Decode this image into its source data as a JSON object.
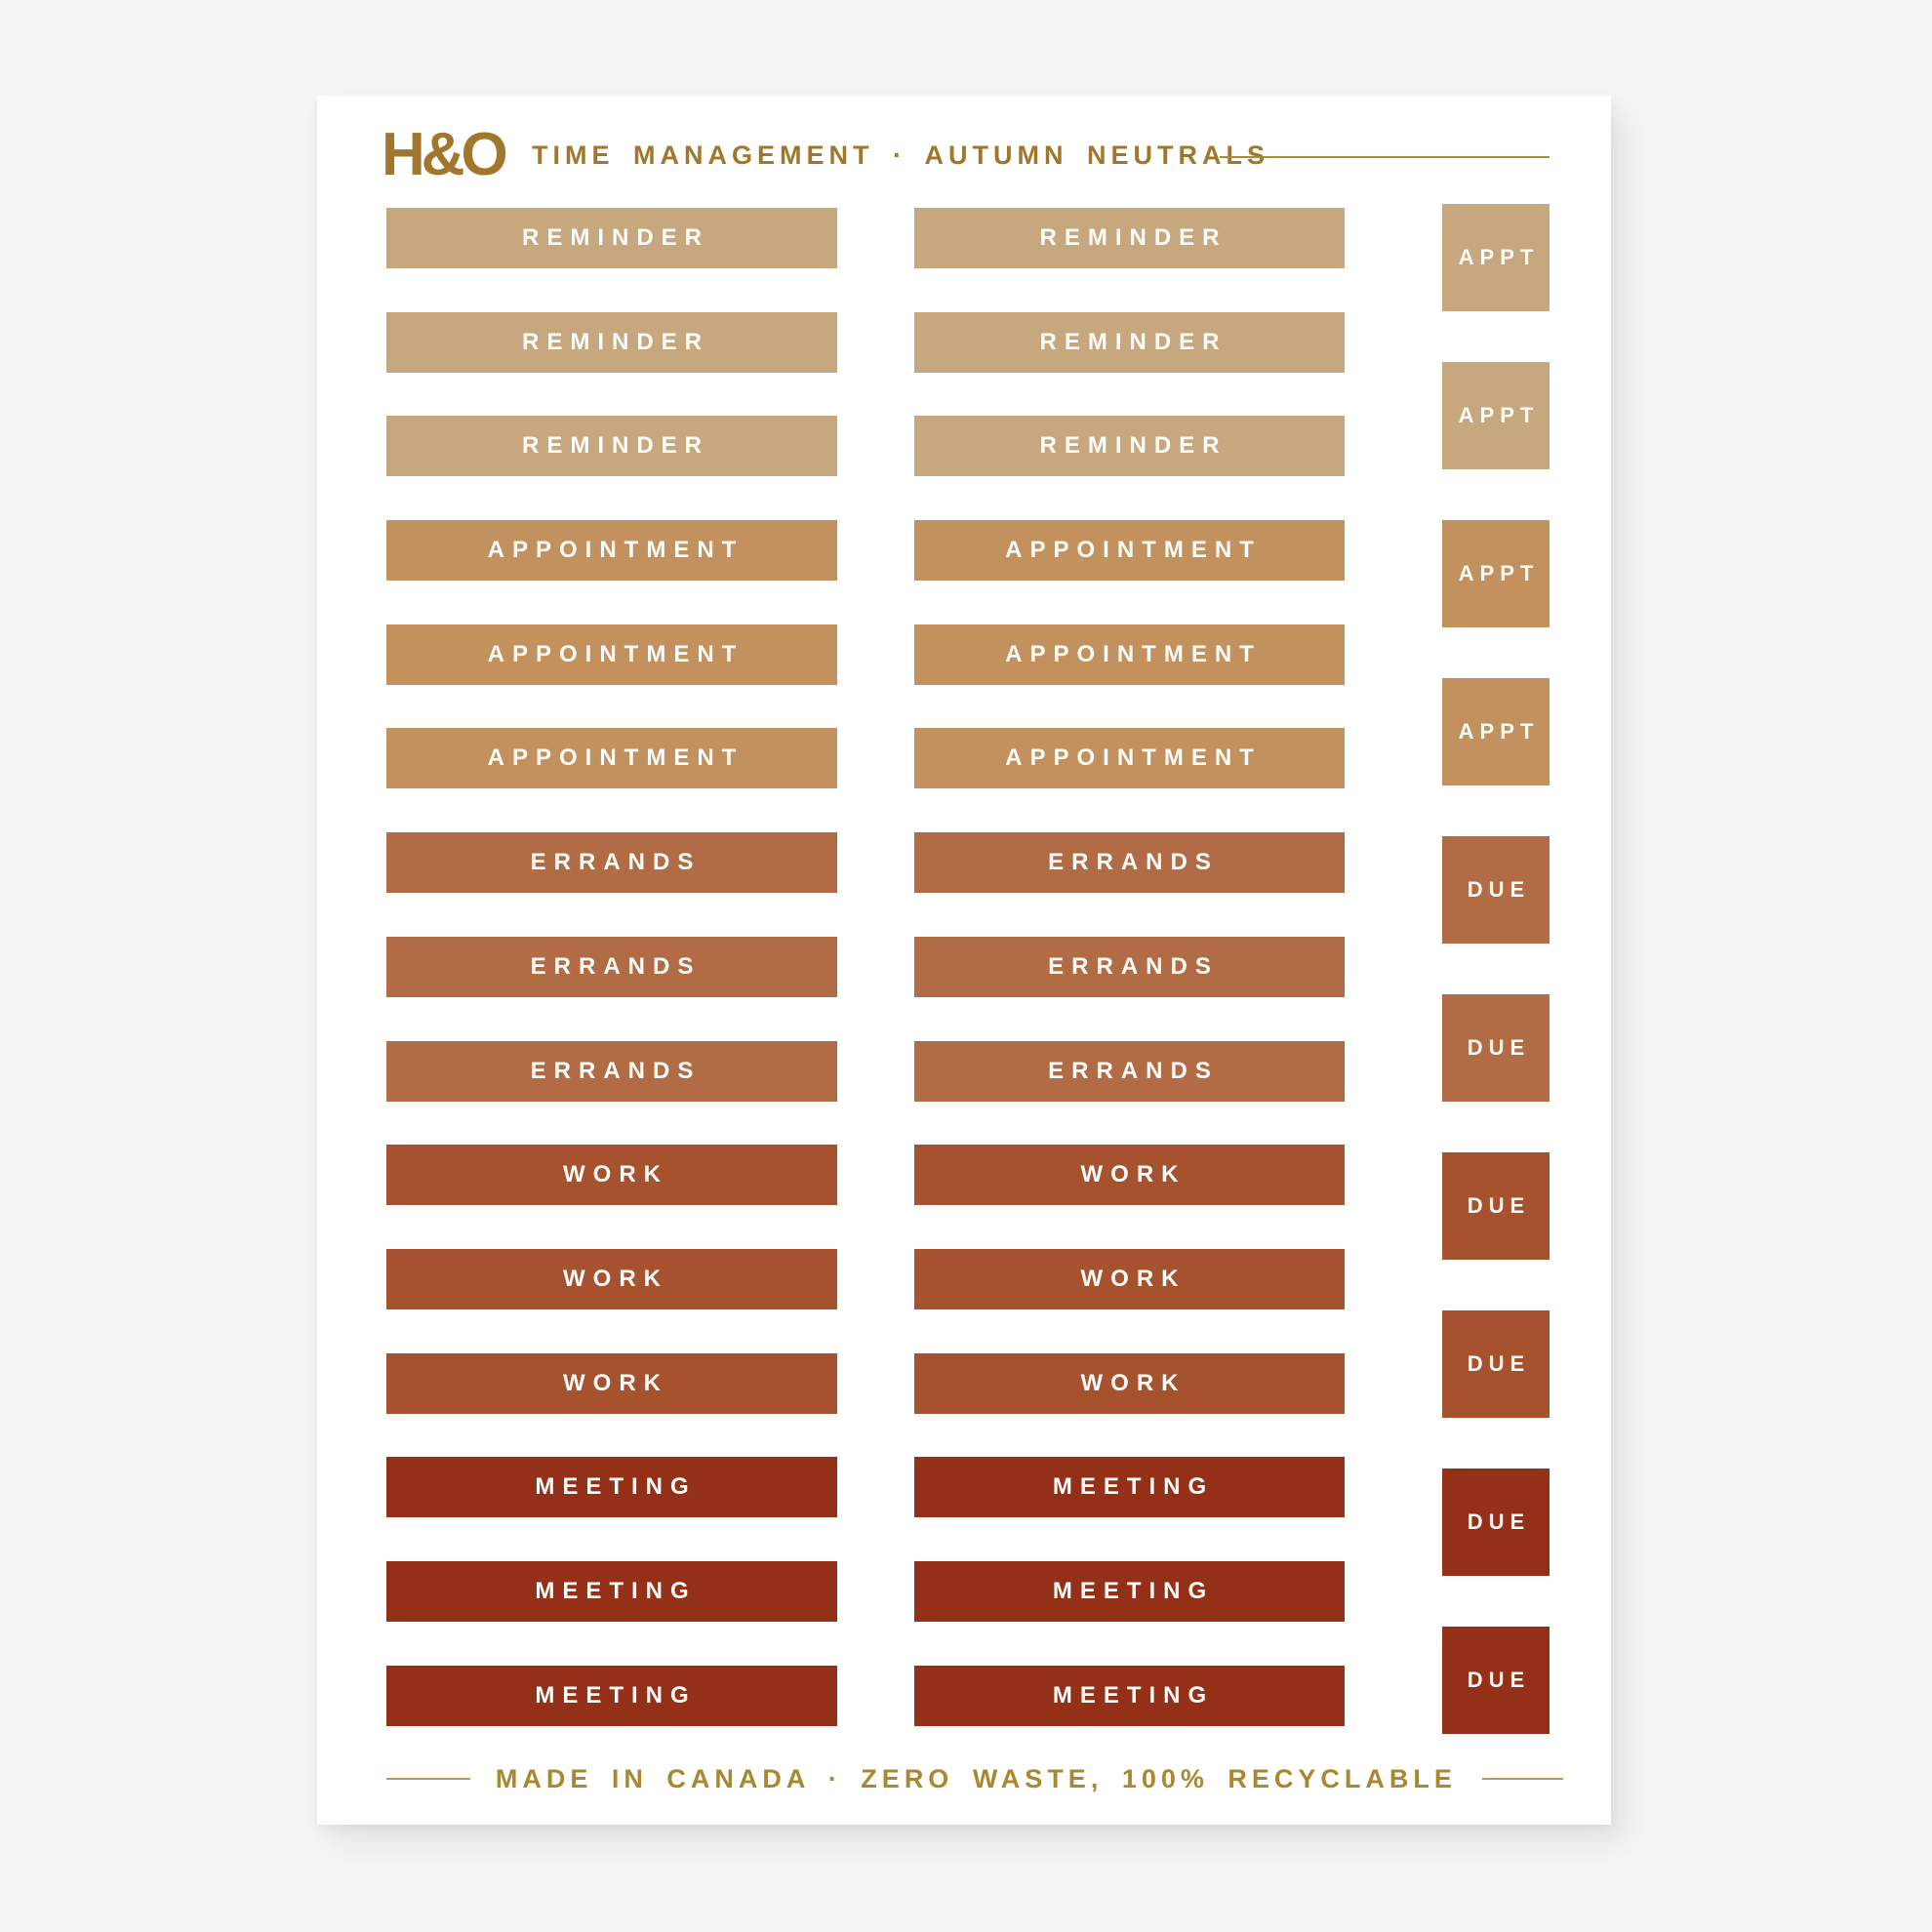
{
  "page": {
    "background_color": "#f5f5f6",
    "sheet_color": "#ffffff"
  },
  "header": {
    "logo": "H&O",
    "title": "TIME MANAGEMENT · AUTUMN NEUTRALS",
    "text_color": "#a0772c",
    "rule_color": "#ab8c3f"
  },
  "colors": {
    "reminder_tan": "#c7a87e",
    "appointment_tan": "#c2915e",
    "errands_terracotta": "#b16c45",
    "work_rust": "#a6522f",
    "meeting_brick": "#942f18",
    "sticker_label_text": "#fdfcf8",
    "brand_gold": "#a0772c"
  },
  "stickers": {
    "column_count": 2,
    "label_color": "#fdfcf8",
    "rows": [
      {
        "label": "REMINDER",
        "color": "#c7a87e"
      },
      {
        "label": "REMINDER",
        "color": "#c7a87e"
      },
      {
        "label": "REMINDER",
        "color": "#c7a87e"
      },
      {
        "label": "APPOINTMENT",
        "color": "#c2915e"
      },
      {
        "label": "APPOINTMENT",
        "color": "#c2915e"
      },
      {
        "label": "APPOINTMENT",
        "color": "#c2915e"
      },
      {
        "label": "ERRANDS",
        "color": "#b16c45"
      },
      {
        "label": "ERRANDS",
        "color": "#b16c45"
      },
      {
        "label": "ERRANDS",
        "color": "#b16c45"
      },
      {
        "label": "WORK",
        "color": "#a6522f"
      },
      {
        "label": "WORK",
        "color": "#a6522f"
      },
      {
        "label": "WORK",
        "color": "#a6522f"
      },
      {
        "label": "MEETING",
        "color": "#942f18"
      },
      {
        "label": "MEETING",
        "color": "#942f18"
      },
      {
        "label": "MEETING",
        "color": "#942f18"
      }
    ],
    "squares": [
      {
        "label": "APPT",
        "color": "#c7a87e"
      },
      {
        "label": "APPT",
        "color": "#c7a87e"
      },
      {
        "label": "APPT",
        "color": "#c2915e"
      },
      {
        "label": "APPT",
        "color": "#c2915e"
      },
      {
        "label": "DUE",
        "color": "#b16c45"
      },
      {
        "label": "DUE",
        "color": "#b16c45"
      },
      {
        "label": "DUE",
        "color": "#a6522f"
      },
      {
        "label": "DUE",
        "color": "#a6522f"
      },
      {
        "label": "DUE",
        "color": "#942f18"
      },
      {
        "label": "DUE",
        "color": "#942f18"
      }
    ]
  },
  "footer": {
    "text": "MADE IN CANADA · ZERO WASTE, 100% RECYCLABLE",
    "text_color": "#a98831",
    "rule_color": "#b39b52"
  }
}
